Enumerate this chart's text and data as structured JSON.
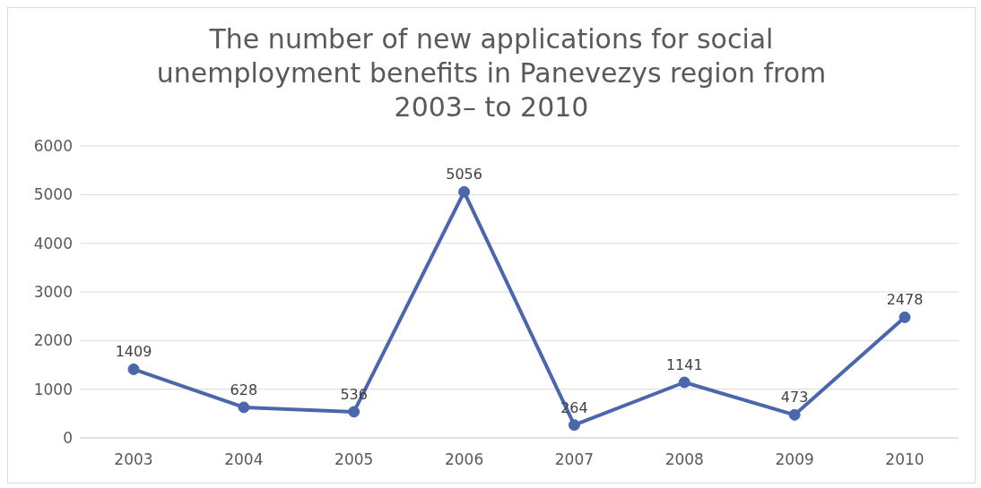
{
  "chart_data": {
    "type": "line",
    "title": "The number of new applications for social unemployment benefits in Panevezys region from 2003– to 2010",
    "categories": [
      "2003",
      "2004",
      "2005",
      "2006",
      "2007",
      "2008",
      "2009",
      "2010"
    ],
    "series": [
      {
        "color": "#4a67ad",
        "values": [
          1409,
          628,
          536,
          5056,
          264,
          1141,
          473,
          2478
        ]
      }
    ],
    "ylim": [
      0,
      6000
    ],
    "yticks": [
      0,
      1000,
      2000,
      3000,
      4000,
      5000,
      6000
    ],
    "grid": "y",
    "marker": "circle",
    "line_style": "solid",
    "data_labels": true,
    "legend": false
  }
}
